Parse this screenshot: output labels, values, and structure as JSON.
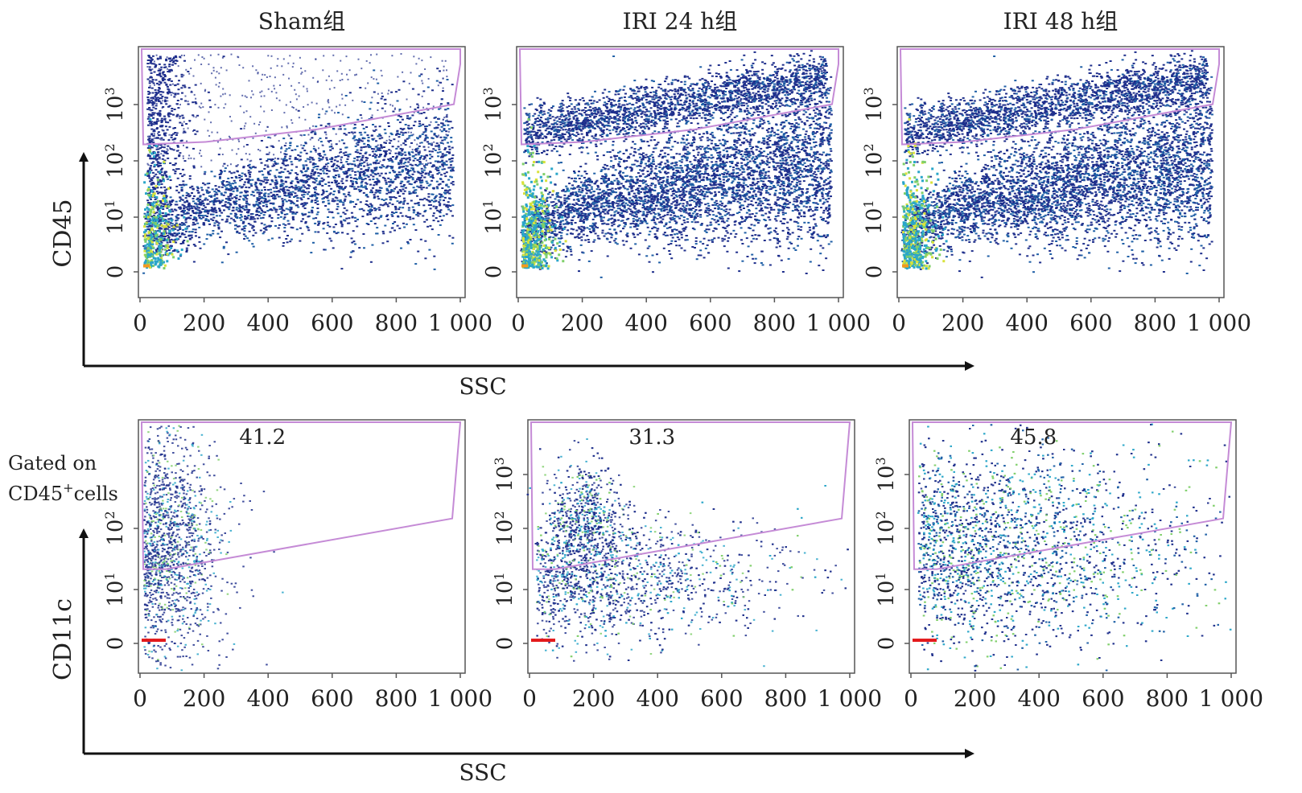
{
  "figure": {
    "top_xlabel": "SSC",
    "top_ylabel": "CD45",
    "bottom_xlabel": "SSC",
    "bottom_ylabel": "CD11c",
    "bottom_annotation": [
      "Gated on",
      "CD45",
      "+",
      "cells"
    ]
  },
  "colors": {
    "gate": "#c58bd6",
    "density_scale": [
      "#1f2f8c",
      "#1f5fa6",
      "#2aa6c9",
      "#7fcf6a",
      "#d8e23a",
      "#f39a1e",
      "#e31a1c"
    ]
  },
  "chart_data": [
    {
      "type": "scatter",
      "panel": "top-sham",
      "title": "Sham组",
      "x_ticks": [
        "0",
        "200",
        "400",
        "600",
        "800",
        "1 000"
      ],
      "y_ticks": [
        "0",
        "10",
        "10",
        "10"
      ],
      "y_tick_exp": [
        "",
        "1",
        "2",
        "3"
      ],
      "xlim": [
        0,
        1000
      ],
      "gate_value": "",
      "density": "low"
    },
    {
      "type": "scatter",
      "panel": "top-iri24",
      "title": "IRI 24 h组",
      "x_ticks": [
        "0",
        "200",
        "400",
        "600",
        "800",
        "1 000"
      ],
      "y_ticks": [
        "0",
        "10",
        "10",
        "10"
      ],
      "y_tick_exp": [
        "",
        "1",
        "2",
        "3"
      ],
      "xlim": [
        0,
        1000
      ],
      "gate_value": "",
      "density": "high"
    },
    {
      "type": "scatter",
      "panel": "top-iri48",
      "title": "IRI 48 h组",
      "x_ticks": [
        "0",
        "200",
        "400",
        "600",
        "800",
        "1 000"
      ],
      "y_ticks": [
        "0",
        "10",
        "10",
        "10"
      ],
      "y_tick_exp": [
        "",
        "1",
        "2",
        "3"
      ],
      "xlim": [
        0,
        1000
      ],
      "gate_value": "",
      "density": "high"
    },
    {
      "type": "scatter",
      "panel": "bottom-sham",
      "title": "",
      "x_ticks": [
        "0",
        "200",
        "400",
        "600",
        "800",
        "1 000"
      ],
      "y_ticks": [
        "0",
        "10",
        "10"
      ],
      "y_tick_exp": [
        "",
        "1",
        "2"
      ],
      "xlim": [
        0,
        1000
      ],
      "gate_value": "41.2",
      "density": "sparse"
    },
    {
      "type": "scatter",
      "panel": "bottom-iri24",
      "title": "",
      "x_ticks": [
        "0",
        "200",
        "400",
        "600",
        "800",
        "1 000"
      ],
      "y_ticks": [
        "0",
        "10",
        "10",
        "10"
      ],
      "y_tick_exp": [
        "",
        "1",
        "2",
        "3"
      ],
      "xlim": [
        0,
        1000
      ],
      "gate_value": "31.3",
      "density": "medium"
    },
    {
      "type": "scatter",
      "panel": "bottom-iri48",
      "title": "",
      "x_ticks": [
        "0",
        "200",
        "400",
        "600",
        "800",
        "1 000"
      ],
      "y_ticks": [
        "0",
        "10",
        "10",
        "10"
      ],
      "y_tick_exp": [
        "",
        "1",
        "2",
        "3"
      ],
      "xlim": [
        0,
        1000
      ],
      "gate_value": "45.8",
      "density": "dense"
    }
  ]
}
